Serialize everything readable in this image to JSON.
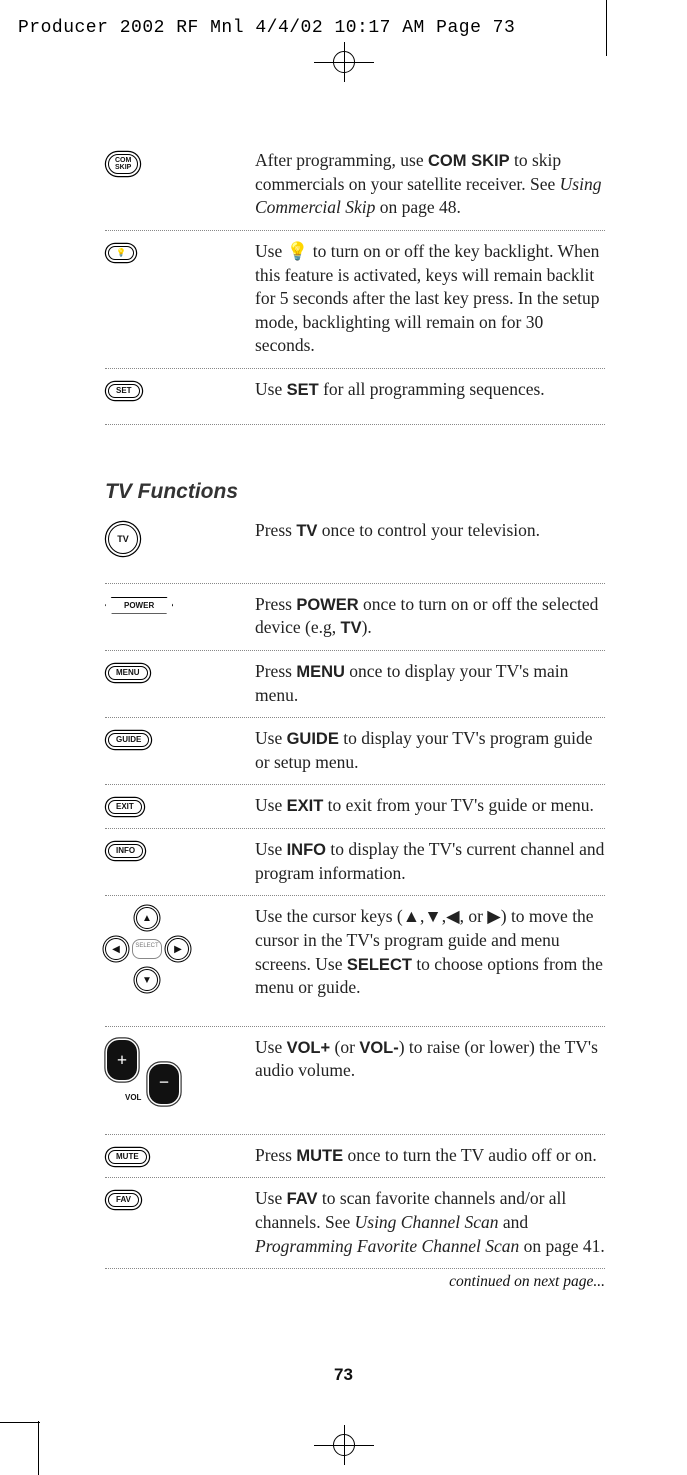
{
  "print_header": "Producer 2002 RF Mnl  4/4/02  10:17 AM  Page 73",
  "page_number": "73",
  "continued": "continued on next page...",
  "section1": [
    {
      "icon": "COM\nSKIP",
      "icon_style": "oval tall double",
      "text": "After programming, use <b>COM SKIP</b> to skip commercials on your satellite receiver. See <i>Using Commercial Skip</i> on page 48."
    },
    {
      "icon": "💡",
      "icon_style": "oval double",
      "text": "Use 💡 to turn on or off the key backlight. When this feature is activated, keys will remain backlit for 5 seconds after the last key press. In the setup mode, backlighting will remain on for 30 seconds."
    },
    {
      "icon": "SET",
      "icon_style": "oval double",
      "text": "Use <b>SET</b> for all programming sequences."
    }
  ],
  "section2_title": "TV Functions",
  "section2": [
    {
      "icon": "TV",
      "icon_style": "circle double",
      "text": "Press <b>TV</b> once to control your television.",
      "gap": true
    },
    {
      "icon": "POWER",
      "icon_style": "power",
      "text": "Press <b>POWER</b> once to turn on or off the selected device (e.g, <b>TV</b>)."
    },
    {
      "icon": "MENU",
      "icon_style": "oval double",
      "text": "Press <b>MENU</b> once to display your TV's main menu."
    },
    {
      "icon": "GUIDE",
      "icon_style": "oval double",
      "text": "Use <b>GUIDE</b> to display your TV's program guide or setup menu."
    },
    {
      "icon": "EXIT",
      "icon_style": "oval double",
      "text": "Use <b>EXIT</b> to exit from your TV's guide or menu."
    },
    {
      "icon": "INFO",
      "icon_style": "oval double",
      "text": "Use <b>INFO</b> to display the TV's current channel and program information."
    },
    {
      "icon": "dpad",
      "icon_style": "dpad",
      "text": "Use the cursor keys (▲,▼,◀, or ▶) to move the cursor in the TV's program guide and menu screens. Use <b>SELECT</b> to choose options from the menu or guide.",
      "gap": true
    },
    {
      "icon": "vol",
      "icon_style": "vol",
      "text": "Use <b>VOL+</b> (or <b>VOL-</b>) to raise (or lower) the TV's audio volume.",
      "gap": true
    },
    {
      "icon": "MUTE",
      "icon_style": "oval double",
      "text": "Press <b>MUTE</b> once to turn the TV audio off or on."
    },
    {
      "icon": "FAV",
      "icon_style": "oval double",
      "text": "Use <b>FAV</b> to scan favorite channels and/or all channels. See <i>Using Channel Scan</i> and <i>Programming Favorite Channel Scan</i> on page 41."
    }
  ]
}
